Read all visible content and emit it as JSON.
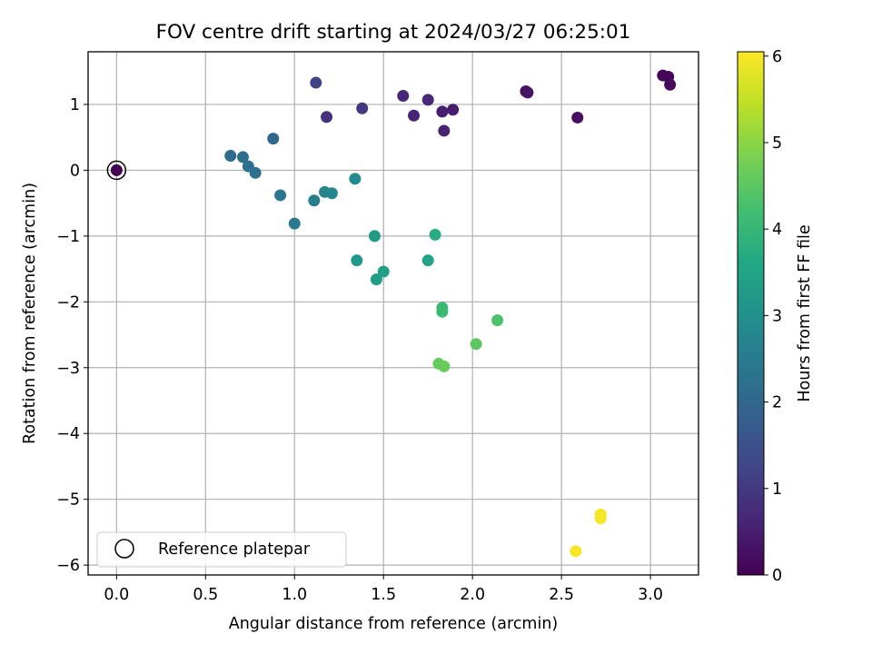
{
  "chart_data": {
    "type": "scatter",
    "title": "FOV centre drift starting at 2024/03/27 06:25:01",
    "xlabel": "Angular distance from reference (arcmin)",
    "ylabel": "Rotation from reference (arcmin)",
    "colorbar_label": "Hours from first FF file",
    "xlim": [
      -0.16,
      3.27
    ],
    "ylim": [
      -6.15,
      1.8
    ],
    "clim": [
      0,
      6.05
    ],
    "xticks": [
      0.0,
      0.5,
      1.0,
      1.5,
      2.0,
      2.5,
      3.0
    ],
    "xtick_labels": [
      "0.0",
      "0.5",
      "1.0",
      "1.5",
      "2.0",
      "2.5",
      "3.0"
    ],
    "yticks": [
      1,
      0,
      -1,
      -2,
      -3,
      -4,
      -5,
      -6
    ],
    "ytick_labels": [
      "1",
      "0",
      "−1",
      "−2",
      "−3",
      "−4",
      "−5",
      "−6"
    ],
    "cticks": [
      0,
      1,
      2,
      3,
      4,
      5,
      6
    ],
    "ctick_labels": [
      "0",
      "1",
      "2",
      "3",
      "4",
      "5",
      "6"
    ],
    "grid": true,
    "legend_position": "lower-left",
    "legend_label": "Reference platepar",
    "colormap": "viridis",
    "reference_point": {
      "x": 0.0,
      "y": 0.0,
      "hours": 0.0
    },
    "points": [
      {
        "x": 3.07,
        "y": 1.44,
        "hours": 0.05
      },
      {
        "x": 3.1,
        "y": 1.42,
        "hours": 0.1
      },
      {
        "x": 3.11,
        "y": 1.3,
        "hours": 0.15
      },
      {
        "x": 2.3,
        "y": 1.2,
        "hours": 0.3
      },
      {
        "x": 2.31,
        "y": 1.18,
        "hours": 0.35
      },
      {
        "x": 2.59,
        "y": 0.8,
        "hours": 0.25
      },
      {
        "x": 1.89,
        "y": 0.92,
        "hours": 0.45
      },
      {
        "x": 1.83,
        "y": 0.89,
        "hours": 0.5
      },
      {
        "x": 1.84,
        "y": 0.6,
        "hours": 0.55
      },
      {
        "x": 1.67,
        "y": 0.83,
        "hours": 0.6
      },
      {
        "x": 1.61,
        "y": 1.13,
        "hours": 0.65
      },
      {
        "x": 1.75,
        "y": 1.07,
        "hours": 0.7
      },
      {
        "x": 1.18,
        "y": 0.81,
        "hours": 0.85
      },
      {
        "x": 1.38,
        "y": 0.94,
        "hours": 1.0
      },
      {
        "x": 1.12,
        "y": 1.33,
        "hours": 1.2
      },
      {
        "x": 0.88,
        "y": 0.48,
        "hours": 2.0
      },
      {
        "x": 0.64,
        "y": 0.22,
        "hours": 2.1
      },
      {
        "x": 0.71,
        "y": 0.2,
        "hours": 2.15
      },
      {
        "x": 0.74,
        "y": 0.06,
        "hours": 2.2
      },
      {
        "x": 0.78,
        "y": -0.04,
        "hours": 2.25
      },
      {
        "x": 0.92,
        "y": -0.38,
        "hours": 2.35
      },
      {
        "x": 1.0,
        "y": -0.81,
        "hours": 2.45
      },
      {
        "x": 1.11,
        "y": -0.46,
        "hours": 2.6
      },
      {
        "x": 1.17,
        "y": -0.33,
        "hours": 2.7
      },
      {
        "x": 1.21,
        "y": -0.35,
        "hours": 2.75
      },
      {
        "x": 1.34,
        "y": -0.13,
        "hours": 2.85
      },
      {
        "x": 1.35,
        "y": -1.37,
        "hours": 3.2
      },
      {
        "x": 1.45,
        "y": -1.0,
        "hours": 3.3
      },
      {
        "x": 1.46,
        "y": -1.66,
        "hours": 3.35
      },
      {
        "x": 1.5,
        "y": -1.54,
        "hours": 3.4
      },
      {
        "x": 1.75,
        "y": -1.37,
        "hours": 3.5
      },
      {
        "x": 1.79,
        "y": -0.98,
        "hours": 3.75
      },
      {
        "x": 1.83,
        "y": -2.09,
        "hours": 4.05
      },
      {
        "x": 1.83,
        "y": -2.15,
        "hours": 4.1
      },
      {
        "x": 2.14,
        "y": -2.28,
        "hours": 4.35
      },
      {
        "x": 2.02,
        "y": -2.64,
        "hours": 4.5
      },
      {
        "x": 1.81,
        "y": -2.94,
        "hours": 4.6
      },
      {
        "x": 1.84,
        "y": -2.98,
        "hours": 4.65
      },
      {
        "x": 2.72,
        "y": -5.23,
        "hours": 5.95
      },
      {
        "x": 2.72,
        "y": -5.29,
        "hours": 5.98
      },
      {
        "x": 2.58,
        "y": -5.79,
        "hours": 6.0
      }
    ]
  }
}
